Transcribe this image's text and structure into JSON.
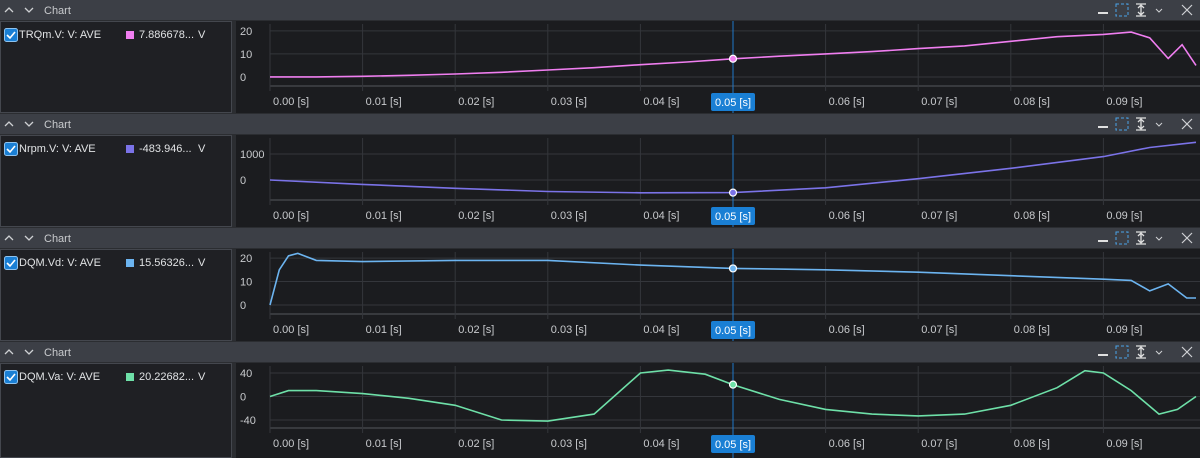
{
  "panels": [
    {
      "header": "Chart",
      "chart": {
        "type": "line",
        "x": [
          0,
          0.005,
          0.01,
          0.015,
          0.02,
          0.025,
          0.03,
          0.035,
          0.04,
          0.045,
          0.05,
          0.055,
          0.06,
          0.065,
          0.07,
          0.075,
          0.08,
          0.085,
          0.09,
          0.093,
          0.095,
          0.097,
          0.0985,
          0.1
        ],
        "series": [
          {
            "name": "TRQm.V: V: AVE",
            "color": "#f07ef0",
            "value_label": "7.886678...",
            "unit": "V",
            "values": [
              0,
              0,
              0.3,
              0.7,
              1.3,
              2,
              3,
              4,
              5.3,
              6.5,
              7.9,
              9,
              10,
              11,
              12.3,
              13.5,
              15.5,
              17.5,
              18.5,
              19.5,
              17,
              8,
              14,
              5
            ]
          }
        ],
        "xlim": [
          0,
          0.1
        ],
        "ylim": [
          -3.5,
          23
        ],
        "yticks": [
          0,
          10,
          20
        ],
        "xticks": [
          {
            "value": 0,
            "label": "0.00 [s]"
          },
          {
            "value": 0.01,
            "label": "0.01 [s]"
          },
          {
            "value": 0.02,
            "label": "0.02 [s]"
          },
          {
            "value": 0.03,
            "label": "0.03 [s]"
          },
          {
            "value": 0.04,
            "label": "0.04 [s]"
          },
          {
            "value": 0.06,
            "label": "0.06 [s]"
          },
          {
            "value": 0.07,
            "label": "0.07 [s]"
          },
          {
            "value": 0.08,
            "label": "0.08 [s]"
          },
          {
            "value": 0.09,
            "label": "0.09 [s]"
          }
        ],
        "cursor": {
          "value": 0.05,
          "label": "0.05 [s]"
        }
      }
    },
    {
      "header": "Chart",
      "chart": {
        "type": "line",
        "x": [
          0,
          0.01,
          0.02,
          0.03,
          0.04,
          0.05,
          0.06,
          0.07,
          0.08,
          0.09,
          0.095,
          0.1
        ],
        "series": [
          {
            "name": "Nrpm.V: V: AVE",
            "color": "#7b73e8",
            "value_label": "-483.946...",
            "unit": "V",
            "values": [
              0,
              -170,
              -320,
              -440,
              -490,
              -484,
              -300,
              50,
              450,
              900,
              1250,
              1450
            ]
          }
        ],
        "xlim": [
          0,
          0.1
        ],
        "ylim": [
          -730,
          1615
        ],
        "yticks": [
          0,
          1000
        ],
        "xticks": [
          {
            "value": 0,
            "label": "0.00 [s]"
          },
          {
            "value": 0.01,
            "label": "0.01 [s]"
          },
          {
            "value": 0.02,
            "label": "0.02 [s]"
          },
          {
            "value": 0.03,
            "label": "0.03 [s]"
          },
          {
            "value": 0.04,
            "label": "0.04 [s]"
          },
          {
            "value": 0.06,
            "label": "0.06 [s]"
          },
          {
            "value": 0.07,
            "label": "0.07 [s]"
          },
          {
            "value": 0.08,
            "label": "0.08 [s]"
          },
          {
            "value": 0.09,
            "label": "0.09 [s]"
          }
        ],
        "cursor": {
          "value": 0.05,
          "label": "0.05 [s]"
        }
      }
    },
    {
      "header": "Chart",
      "chart": {
        "type": "line",
        "x": [
          0,
          0.001,
          0.002,
          0.003,
          0.005,
          0.01,
          0.02,
          0.03,
          0.04,
          0.05,
          0.06,
          0.07,
          0.08,
          0.09,
          0.093,
          0.095,
          0.097,
          0.099,
          0.1
        ],
        "series": [
          {
            "name": "DQM.Vd: V: AVE",
            "color": "#6cb4f0",
            "value_label": "15.56326...",
            "unit": "V",
            "values": [
              0,
              15,
              21,
              22,
              19,
              18.5,
              19,
              19,
              17,
              15.6,
              15,
              14,
              12.5,
              11,
              10.5,
              6,
              9,
              3,
              3
            ]
          }
        ],
        "xlim": [
          0,
          0.1
        ],
        "ylim": [
          -3.4,
          22.6
        ],
        "yticks": [
          0,
          10,
          20
        ],
        "xticks": [
          {
            "value": 0,
            "label": "0.00 [s]"
          },
          {
            "value": 0.01,
            "label": "0.01 [s]"
          },
          {
            "value": 0.02,
            "label": "0.02 [s]"
          },
          {
            "value": 0.03,
            "label": "0.03 [s]"
          },
          {
            "value": 0.04,
            "label": "0.04 [s]"
          },
          {
            "value": 0.06,
            "label": "0.06 [s]"
          },
          {
            "value": 0.07,
            "label": "0.07 [s]"
          },
          {
            "value": 0.08,
            "label": "0.08 [s]"
          },
          {
            "value": 0.09,
            "label": "0.09 [s]"
          }
        ],
        "cursor": {
          "value": 0.05,
          "label": "0.05 [s]"
        }
      }
    },
    {
      "header": "Chart",
      "chart": {
        "type": "line",
        "x": [
          0,
          0.002,
          0.005,
          0.01,
          0.015,
          0.02,
          0.025,
          0.03,
          0.035,
          0.04,
          0.043,
          0.047,
          0.05,
          0.055,
          0.06,
          0.065,
          0.07,
          0.075,
          0.08,
          0.085,
          0.088,
          0.09,
          0.093,
          0.096,
          0.098,
          0.1
        ],
        "series": [
          {
            "name": "DQM.Va: V: AVE",
            "color": "#6ee0a8",
            "value_label": "20.22682...",
            "unit": "V",
            "values": [
              0,
              10,
              10,
              5,
              -3,
              -15,
              -40,
              -42,
              -30,
              40,
              45,
              38,
              20.2,
              -5,
              -22,
              -30,
              -33,
              -30,
              -15,
              15,
              44,
              40,
              10,
              -30,
              -22,
              0
            ]
          }
        ],
        "xlim": [
          0,
          0.1
        ],
        "ylim": [
          -52,
          52
        ],
        "yticks": [
          -40,
          0,
          40
        ],
        "xticks": [
          {
            "value": 0,
            "label": "0.00 [s]"
          },
          {
            "value": 0.01,
            "label": "0.01 [s]"
          },
          {
            "value": 0.02,
            "label": "0.02 [s]"
          },
          {
            "value": 0.03,
            "label": "0.03 [s]"
          },
          {
            "value": 0.04,
            "label": "0.04 [s]"
          },
          {
            "value": 0.06,
            "label": "0.06 [s]"
          },
          {
            "value": 0.07,
            "label": "0.07 [s]"
          },
          {
            "value": 0.08,
            "label": "0.08 [s]"
          },
          {
            "value": 0.09,
            "label": "0.09 [s]"
          }
        ],
        "cursor": {
          "value": 0.05,
          "label": "0.05 [s]"
        }
      }
    }
  ]
}
